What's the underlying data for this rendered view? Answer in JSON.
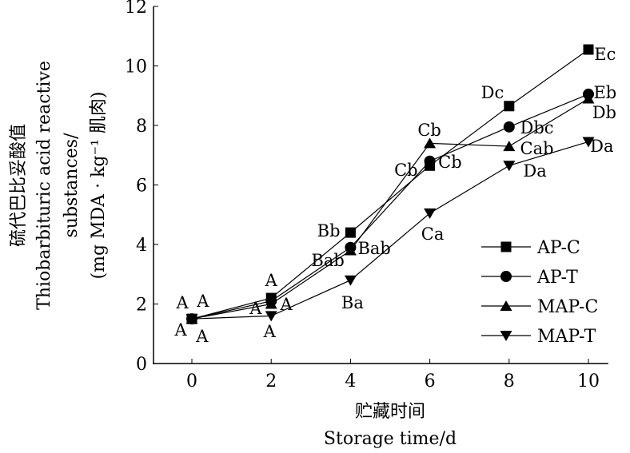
{
  "chart_data": {
    "type": "line",
    "title": "",
    "xlabel": [
      "贮藏时间",
      "Storage time/d"
    ],
    "ylabel": [
      "硫代巴比妥酸值",
      "Thiobarbituric acid reactive",
      "substances/",
      "(mg MDA · kg⁻¹ 肌肉)"
    ],
    "xlim": [
      -1,
      10.5
    ],
    "ylim": [
      0,
      12
    ],
    "xticks": [
      0,
      2,
      4,
      6,
      8,
      10
    ],
    "yticks": [
      0,
      2,
      4,
      6,
      8,
      10,
      12
    ],
    "grid": false,
    "legend_position": "bottom-right",
    "x": [
      0,
      2,
      4,
      6,
      8,
      10
    ],
    "series": [
      {
        "name": "AP-C",
        "marker": "square",
        "values": [
          1.5,
          2.2,
          4.4,
          6.65,
          8.65,
          10.55
        ]
      },
      {
        "name": "AP-T",
        "marker": "circle",
        "values": [
          1.5,
          2.1,
          3.9,
          6.8,
          7.95,
          9.05
        ]
      },
      {
        "name": "MAP-C",
        "marker": "triangle-up",
        "values": [
          1.5,
          2.0,
          3.8,
          7.4,
          7.3,
          8.9
        ]
      },
      {
        "name": "MAP-T",
        "marker": "triangle-down",
        "values": [
          1.5,
          1.6,
          2.8,
          5.05,
          6.65,
          7.45
        ]
      }
    ],
    "annotations": [
      {
        "text": "A",
        "x": -0.24,
        "y": 2.07
      },
      {
        "text": "A",
        "x": 0.28,
        "y": 2.12
      },
      {
        "text": "A",
        "x": -0.28,
        "y": 1.15
      },
      {
        "text": "A",
        "x": 0.26,
        "y": 0.94
      },
      {
        "text": "A",
        "x": 2.0,
        "y": 2.82
      },
      {
        "text": "A",
        "x": 1.61,
        "y": 1.88
      },
      {
        "text": "A",
        "x": 2.38,
        "y": 2.01
      },
      {
        "text": "A",
        "x": 1.96,
        "y": 1.1
      },
      {
        "text": "Bb",
        "x": 3.45,
        "y": 4.48
      },
      {
        "text": "Bab",
        "x": 4.6,
        "y": 3.89
      },
      {
        "text": "Bab",
        "x": 3.43,
        "y": 3.49
      },
      {
        "text": "Ba",
        "x": 4.05,
        "y": 2.07
      },
      {
        "text": "Cb",
        "x": 5.99,
        "y": 7.87
      },
      {
        "text": "Cb",
        "x": 6.51,
        "y": 6.79
      },
      {
        "text": "Cb",
        "x": 5.4,
        "y": 6.52
      },
      {
        "text": "Ca",
        "x": 6.07,
        "y": 4.38
      },
      {
        "text": "Dc",
        "x": 7.58,
        "y": 9.13
      },
      {
        "text": "Dbc",
        "x": 8.7,
        "y": 7.95
      },
      {
        "text": "Cab",
        "x": 8.7,
        "y": 7.25
      },
      {
        "text": "Da",
        "x": 8.65,
        "y": 6.5
      },
      {
        "text": "Ec",
        "x": 10.42,
        "y": 10.42
      },
      {
        "text": "Eb",
        "x": 10.42,
        "y": 9.13
      },
      {
        "text": "Db",
        "x": 10.4,
        "y": 8.46
      },
      {
        "text": "Da",
        "x": 10.34,
        "y": 7.33
      }
    ]
  }
}
